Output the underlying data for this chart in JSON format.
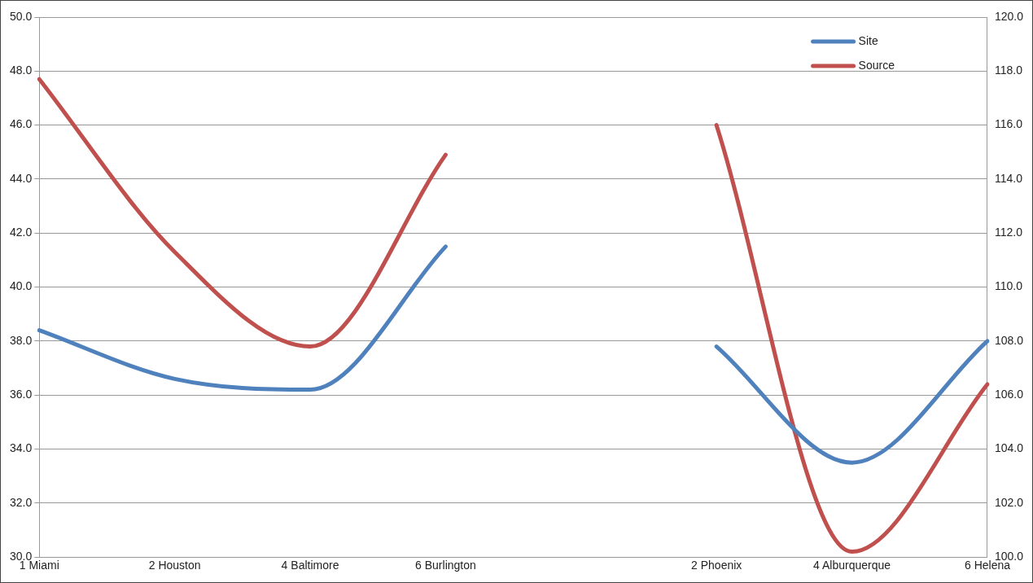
{
  "chart_data": {
    "type": "line",
    "categories": [
      "1 Miami",
      "2 Houston",
      "4 Baltimore",
      "6 Burlington",
      null,
      "2 Phoenix",
      "4 Alburquerque",
      "6 Helena"
    ],
    "series": [
      {
        "name": "Site",
        "color": "#4f81bd",
        "values": [
          38.4,
          36.6,
          36.2,
          41.5,
          null,
          37.8,
          33.5,
          38.0
        ]
      },
      {
        "name": "Source",
        "color": "#c0504d",
        "axis": "y2",
        "values": [
          117.7,
          111.3,
          107.8,
          114.9,
          null,
          116.0,
          100.2,
          106.4
        ]
      }
    ],
    "ylim": [
      30,
      50
    ],
    "yticks": [
      {
        "value": 30,
        "label": "30.0"
      },
      {
        "value": 32,
        "label": "32.0"
      },
      {
        "value": 34,
        "label": "34.0"
      },
      {
        "value": 36,
        "label": "36.0"
      },
      {
        "value": 38,
        "label": "38.0"
      },
      {
        "value": 40,
        "label": "40.0"
      },
      {
        "value": 42,
        "label": "42.0"
      },
      {
        "value": 44,
        "label": "44.0"
      },
      {
        "value": 46,
        "label": "46.0"
      },
      {
        "value": 48,
        "label": "48.0"
      },
      {
        "value": 50,
        "label": "50.0"
      }
    ],
    "y2lim": [
      100,
      120
    ],
    "y2ticks": [
      {
        "value": 100,
        "label": "100.0"
      },
      {
        "value": 102,
        "label": "102.0"
      },
      {
        "value": 104,
        "label": "104.0"
      },
      {
        "value": 106,
        "label": "106.0"
      },
      {
        "value": 108,
        "label": "108.0"
      },
      {
        "value": 110,
        "label": "110.0"
      },
      {
        "value": 112,
        "label": "112.0"
      },
      {
        "value": 114,
        "label": "114.0"
      },
      {
        "value": 116,
        "label": "116.0"
      },
      {
        "value": 118,
        "label": "118.0"
      },
      {
        "value": 120,
        "label": "120.0"
      }
    ],
    "grid": "y",
    "legend": "top right",
    "marker": "none",
    "line_style": "solid"
  }
}
